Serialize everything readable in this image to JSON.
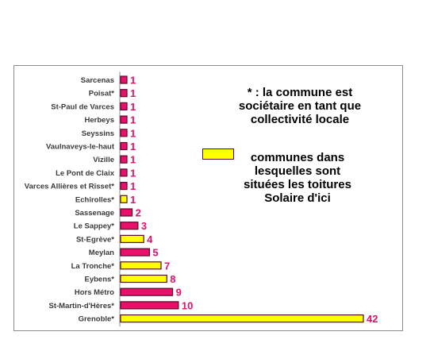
{
  "chart_data": {
    "type": "bar",
    "orientation": "horizontal",
    "categories": [
      "Sarcenas",
      "Poisat*",
      "St-Paul de Varces",
      "Herbeys",
      "Seyssins",
      "Vaulnaveys-le-haut",
      "Vizille",
      "Le Pont de Claix",
      "Varces Allières et Risset*",
      "Echirolles*",
      "Sassenage",
      "Le Sappey*",
      "St-Egrève*",
      "Meylan",
      "La Tronche*",
      "Eybens*",
      "Hors Métro",
      "St-Martin-d'Hères*",
      "Grenoble*"
    ],
    "values": [
      1,
      1,
      1,
      1,
      1,
      1,
      1,
      1,
      1,
      1,
      2,
      3,
      4,
      5,
      7,
      8,
      9,
      10,
      42
    ],
    "highlighted": [
      false,
      false,
      false,
      false,
      false,
      false,
      false,
      false,
      false,
      true,
      false,
      false,
      true,
      false,
      true,
      true,
      false,
      false,
      true
    ],
    "xlim": [
      0,
      42
    ],
    "grid": false
  },
  "colors": {
    "bar": "#e8106a",
    "highlight": "#ffff00",
    "bar_border": "#5a0a2a",
    "label": "#e8106a",
    "category": "#3a3a3a"
  },
  "notes": {
    "asterisk": "* : la commune est sociétaire en tant que collectivité locale",
    "highlight": "communes dans lesquelles sont situées les toitures Solaire d'ici"
  }
}
